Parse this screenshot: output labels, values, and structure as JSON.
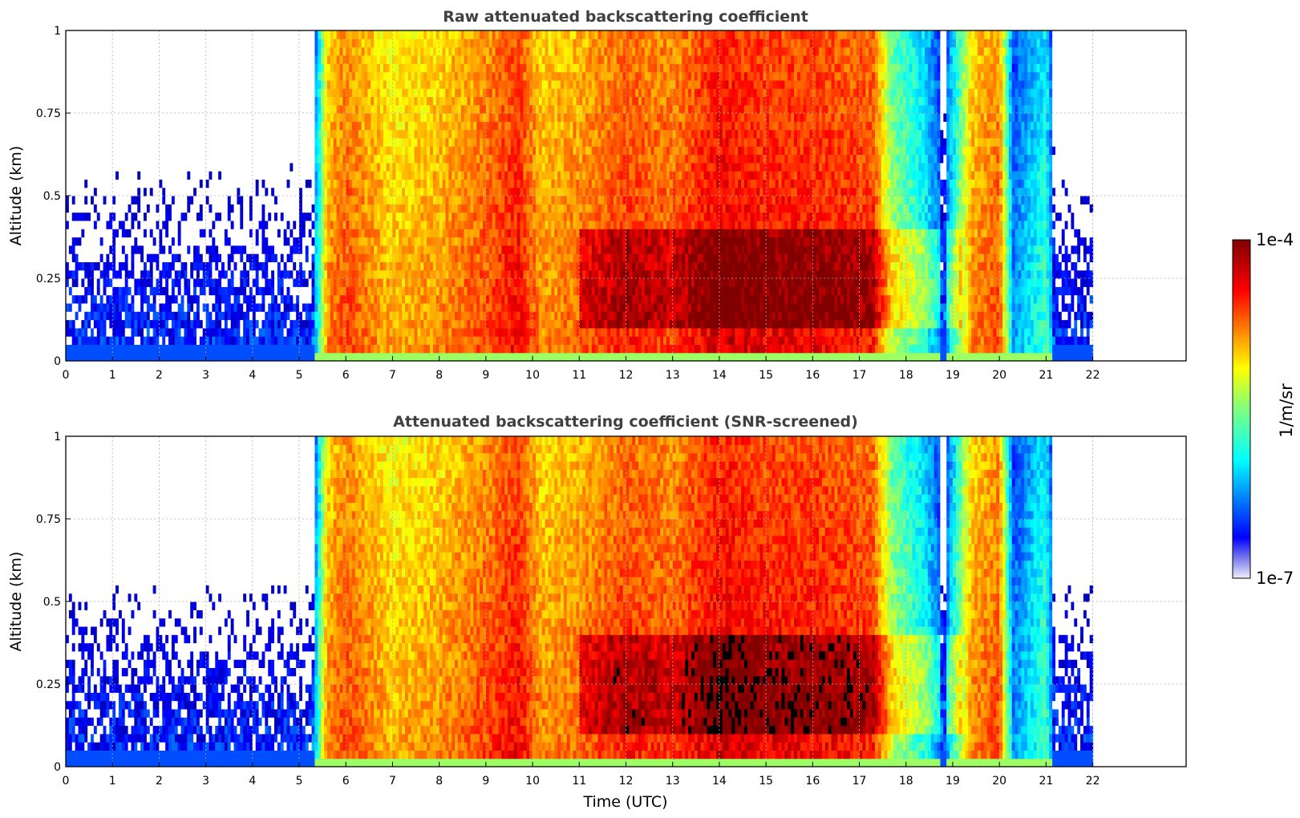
{
  "chart_data": [
    {
      "type": "heatmap",
      "title": "Raw attenuated backscattering coefficient",
      "xlabel": "",
      "ylabel": "Altitude (km)",
      "xlim": [
        0,
        24
      ],
      "ylim": [
        0,
        1
      ],
      "x_ticks": [
        0,
        1,
        2,
        3,
        4,
        5,
        6,
        7,
        8,
        9,
        10,
        11,
        12,
        13,
        14,
        15,
        16,
        17,
        18,
        19,
        20,
        21,
        22
      ],
      "y_ticks": [
        0,
        0.25,
        0.5,
        0.75,
        1
      ],
      "y_tick_labels": [
        "0",
        "0.25",
        "0.5",
        "0.75",
        "1"
      ],
      "grid": true,
      "data_extent_x": [
        0,
        22
      ],
      "colorscale": "jet",
      "log_scale": true,
      "profile_log10": [
        [
          0.0,
          -6.3
        ],
        [
          5.25,
          -6.3
        ],
        [
          5.45,
          -5.4
        ],
        [
          5.6,
          -4.7
        ],
        [
          6.0,
          -4.5
        ],
        [
          7.0,
          -4.8
        ],
        [
          8.0,
          -4.7
        ],
        [
          9.0,
          -4.5
        ],
        [
          9.7,
          -4.3
        ],
        [
          10.2,
          -4.7
        ],
        [
          11.0,
          -4.6
        ],
        [
          12.0,
          -4.4
        ],
        [
          13.0,
          -4.5
        ],
        [
          14.0,
          -4.2
        ],
        [
          15.0,
          -4.3
        ],
        [
          16.0,
          -4.3
        ],
        [
          17.3,
          -4.4
        ],
        [
          17.7,
          -5.2
        ],
        [
          18.4,
          -5.6
        ],
        [
          18.8,
          -6.1
        ],
        [
          19.4,
          -4.7
        ],
        [
          20.0,
          -4.5
        ],
        [
          20.3,
          -6.0
        ],
        [
          21.0,
          -5.5
        ],
        [
          21.2,
          -6.3
        ],
        [
          22.0,
          -6.3
        ]
      ]
    },
    {
      "type": "heatmap",
      "title": "Attenuated backscattering coefficient (SNR-screened)",
      "xlabel": "Time (UTC)",
      "ylabel": "Altitude (km)",
      "xlim": [
        0,
        24
      ],
      "ylim": [
        0,
        1
      ],
      "x_ticks": [
        0,
        1,
        2,
        3,
        4,
        5,
        6,
        7,
        8,
        9,
        10,
        11,
        12,
        13,
        14,
        15,
        16,
        17,
        18,
        19,
        20,
        21,
        22
      ],
      "y_ticks": [
        0,
        0.25,
        0.5,
        0.75,
        1
      ],
      "y_tick_labels": [
        "0",
        "0.25",
        "0.5",
        "0.75",
        "1"
      ],
      "grid": true,
      "data_extent_x": [
        0,
        22
      ],
      "colorscale": "jet",
      "log_scale": true,
      "screened": true,
      "profile_log10": [
        [
          0.0,
          -6.3
        ],
        [
          5.25,
          -6.3
        ],
        [
          5.45,
          -5.4
        ],
        [
          5.6,
          -4.7
        ],
        [
          6.0,
          -4.5
        ],
        [
          7.0,
          -4.8
        ],
        [
          8.0,
          -4.7
        ],
        [
          9.0,
          -4.5
        ],
        [
          9.7,
          -4.3
        ],
        [
          10.2,
          -4.7
        ],
        [
          11.0,
          -4.6
        ],
        [
          12.0,
          -4.4
        ],
        [
          13.0,
          -4.5
        ],
        [
          14.0,
          -4.2
        ],
        [
          15.0,
          -4.3
        ],
        [
          16.0,
          -4.3
        ],
        [
          17.3,
          -4.4
        ],
        [
          17.7,
          -5.2
        ],
        [
          18.4,
          -5.6
        ],
        [
          18.8,
          -6.1
        ],
        [
          19.4,
          -4.7
        ],
        [
          20.0,
          -4.5
        ],
        [
          20.3,
          -6.0
        ],
        [
          21.0,
          -5.5
        ],
        [
          21.2,
          -6.3
        ],
        [
          22.0,
          -6.3
        ]
      ]
    }
  ],
  "colorbar": {
    "label": "1/m/sr",
    "max_label": "1e-4",
    "min_label": "1e-7",
    "range_log10": [
      -7,
      -4
    ],
    "colorscale": "jet",
    "orientation": "vertical",
    "placement": "right"
  }
}
